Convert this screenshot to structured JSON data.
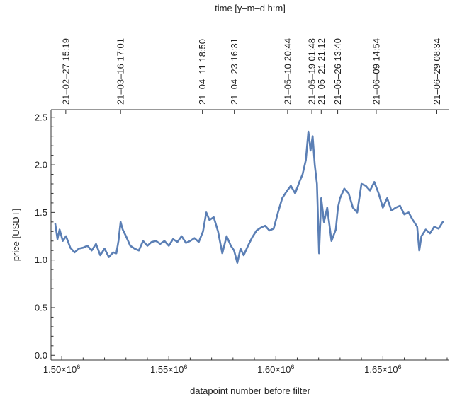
{
  "chart_data": {
    "type": "line",
    "title": "",
    "xlabel": "datapoint number before filter",
    "ylabel": "price [USDT]",
    "x2label": "time [y–m–d h:m]",
    "xlim": [
      1495000,
      1681000
    ],
    "ylim": [
      -0.05,
      2.58
    ],
    "grid": false,
    "legend": "none",
    "line_color": "#5b7fb5",
    "x_ticks": [
      {
        "value": 1500000,
        "label": "1.50×10",
        "exp": "6"
      },
      {
        "value": 1550000,
        "label": "1.55×10",
        "exp": "6"
      },
      {
        "value": 1600000,
        "label": "1.60×10",
        "exp": "6"
      },
      {
        "value": 1650000,
        "label": "1.65×10",
        "exp": "6"
      }
    ],
    "y_ticks": [
      {
        "value": 0.0,
        "label": "0.0"
      },
      {
        "value": 0.5,
        "label": "0.5"
      },
      {
        "value": 1.0,
        "label": "1.0"
      },
      {
        "value": 1.5,
        "label": "1.5"
      },
      {
        "value": 2.0,
        "label": "2.0"
      },
      {
        "value": 2.5,
        "label": "2.5"
      }
    ],
    "top_ticks": [
      {
        "value": 1501900,
        "label": "21–02–27 15:19"
      },
      {
        "value": 1527500,
        "label": "21–03–16 17:01"
      },
      {
        "value": 1565700,
        "label": "21–04–11 18:50"
      },
      {
        "value": 1580600,
        "label": "21–04–23 16:31"
      },
      {
        "value": 1605500,
        "label": "21–05–10 20:44"
      },
      {
        "value": 1616800,
        "label": "21–05–19 01:48"
      },
      {
        "value": 1621200,
        "label": "21–05–21 21:12"
      },
      {
        "value": 1628900,
        "label": "21–05–26 13:40"
      },
      {
        "value": 1646900,
        "label": "21–06–09 14:54"
      },
      {
        "value": 1675200,
        "label": "21–06–29 08:34"
      }
    ],
    "series": [
      {
        "x": [
          1497000,
          1498000,
          1499000,
          1500500,
          1502000,
          1504000,
          1506000,
          1508000,
          1510000,
          1512000,
          1514000,
          1516000,
          1518000,
          1520000,
          1522000,
          1524000,
          1525500,
          1526500,
          1527500,
          1528500,
          1530000,
          1532000,
          1534000,
          1536000,
          1538000,
          1540000,
          1542000,
          1544000,
          1546000,
          1548000,
          1550000,
          1552000,
          1554000,
          1556000,
          1558000,
          1560000,
          1562000,
          1564000,
          1566000,
          1567500,
          1569000,
          1571000,
          1573000,
          1575000,
          1577000,
          1579000,
          1580500,
          1582000,
          1583500,
          1585000,
          1587000,
          1589000,
          1591000,
          1593000,
          1595000,
          1597000,
          1599000,
          1601000,
          1603000,
          1605000,
          1607000,
          1609000,
          1611000,
          1612500,
          1614000,
          1615200,
          1616200,
          1617200,
          1618200,
          1619200,
          1620200,
          1621200,
          1622500,
          1624000,
          1626000,
          1628000,
          1629000,
          1630000,
          1632000,
          1634000,
          1636000,
          1638000,
          1640000,
          1642000,
          1644000,
          1646000,
          1648000,
          1650000,
          1652000,
          1654000,
          1656000,
          1658000,
          1660000,
          1662000,
          1664000,
          1666000,
          1667000,
          1668000,
          1670000,
          1672000,
          1674000,
          1676000,
          1678000
        ],
        "values": [
          1.38,
          1.22,
          1.32,
          1.2,
          1.25,
          1.13,
          1.08,
          1.12,
          1.13,
          1.15,
          1.1,
          1.17,
          1.05,
          1.12,
          1.03,
          1.08,
          1.07,
          1.2,
          1.4,
          1.32,
          1.25,
          1.15,
          1.12,
          1.1,
          1.2,
          1.15,
          1.19,
          1.2,
          1.17,
          1.2,
          1.15,
          1.22,
          1.19,
          1.25,
          1.18,
          1.2,
          1.23,
          1.19,
          1.3,
          1.5,
          1.42,
          1.45,
          1.3,
          1.07,
          1.25,
          1.15,
          1.1,
          0.97,
          1.12,
          1.05,
          1.15,
          1.24,
          1.31,
          1.34,
          1.36,
          1.31,
          1.33,
          1.5,
          1.65,
          1.72,
          1.78,
          1.7,
          1.82,
          1.9,
          2.05,
          2.35,
          2.15,
          2.3,
          2.0,
          1.8,
          1.07,
          1.65,
          1.4,
          1.55,
          1.2,
          1.32,
          1.55,
          1.65,
          1.75,
          1.7,
          1.55,
          1.5,
          1.8,
          1.78,
          1.73,
          1.82,
          1.7,
          1.55,
          1.65,
          1.52,
          1.55,
          1.57,
          1.48,
          1.5,
          1.42,
          1.35,
          1.1,
          1.25,
          1.32,
          1.28,
          1.35,
          1.33,
          1.4
        ]
      }
    ]
  }
}
